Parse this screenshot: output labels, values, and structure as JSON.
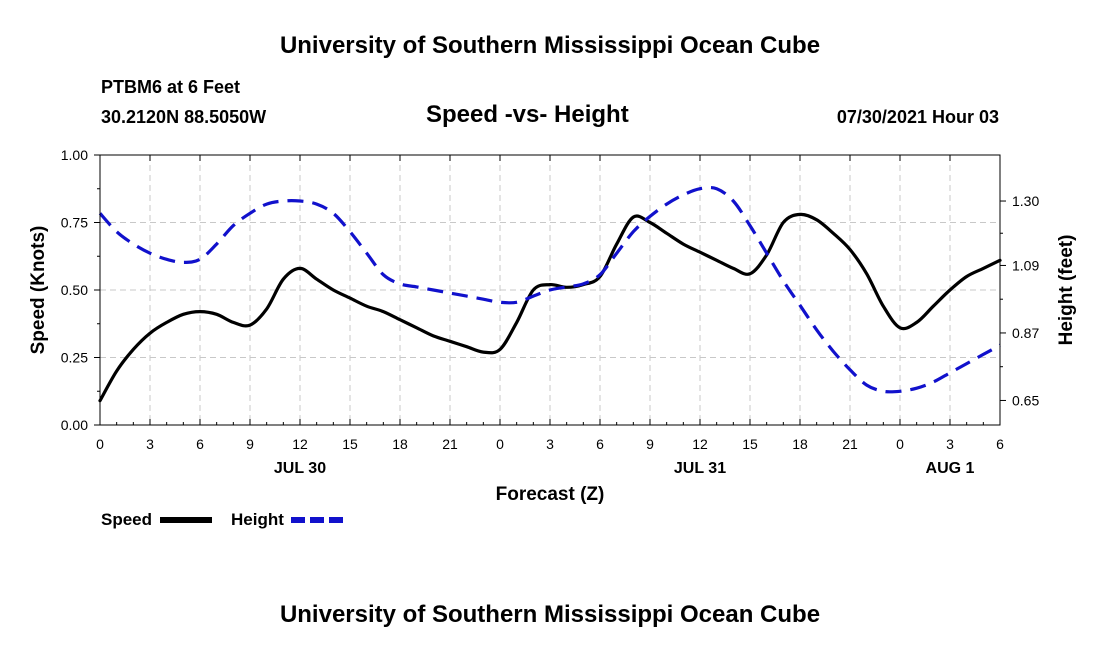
{
  "page": {
    "top_title": "University of Southern Mississippi Ocean Cube",
    "bottom_title": "University of Southern Mississippi Ocean Cube",
    "station": "PTBM6 at 6 Feet",
    "coords": "30.2120N  88.5050W",
    "timestamp": "07/30/2021 Hour 03"
  },
  "chart_data": {
    "type": "line",
    "title": "Speed -vs- Height",
    "xlabel": "Forecast (Z)",
    "ylabel": "Speed (Knots)",
    "y2label": "Height (feet)",
    "grid": true,
    "legend_position": "bottom-left",
    "x_unit": "hours since 2021-07-30 00Z",
    "xlim": [
      0,
      54
    ],
    "ylim": [
      0,
      1
    ],
    "y2lim": [
      0.57,
      1.45
    ],
    "x_ticks": [
      0,
      3,
      6,
      9,
      12,
      15,
      18,
      21,
      24,
      27,
      30,
      33,
      36,
      39,
      42,
      45,
      48,
      51,
      54
    ],
    "x_tick_labels": [
      "0",
      "3",
      "6",
      "9",
      "12",
      "15",
      "18",
      "21",
      "0",
      "3",
      "6",
      "9",
      "12",
      "15",
      "18",
      "21",
      "0",
      "3",
      "6"
    ],
    "date_labels": [
      {
        "x": 12,
        "label": "JUL 30"
      },
      {
        "x": 36,
        "label": "JUL 31"
      },
      {
        "x": 51,
        "label": "AUG 1"
      }
    ],
    "y_ticks": [
      0,
      0.25,
      0.5,
      0.75,
      1.0
    ],
    "y_tick_labels": [
      "0.00",
      "0.25",
      "0.50",
      "0.75",
      "1.00"
    ],
    "y2_ticks": [
      0.65,
      0.87,
      1.09,
      1.3
    ],
    "y2_tick_labels": [
      "0.65",
      "0.87",
      "1.09",
      "1.30"
    ],
    "series": [
      {
        "name": "Speed",
        "axis": "left",
        "color": "#000000",
        "dash": "solid",
        "x": [
          0,
          1,
          2,
          3,
          4,
          5,
          6,
          7,
          8,
          9,
          10,
          11,
          12,
          13,
          14,
          15,
          16,
          17,
          18,
          19,
          20,
          21,
          22,
          23,
          24,
          25,
          26,
          27,
          28,
          29,
          30,
          31,
          32,
          33,
          34,
          35,
          36,
          37,
          38,
          39,
          40,
          41,
          42,
          43,
          44,
          45,
          46,
          47,
          48,
          49,
          50,
          51,
          52,
          53,
          54
        ],
        "values": [
          0.09,
          0.2,
          0.28,
          0.34,
          0.38,
          0.41,
          0.42,
          0.41,
          0.38,
          0.37,
          0.43,
          0.54,
          0.58,
          0.54,
          0.5,
          0.47,
          0.44,
          0.42,
          0.39,
          0.36,
          0.33,
          0.31,
          0.29,
          0.27,
          0.28,
          0.38,
          0.5,
          0.52,
          0.51,
          0.52,
          0.55,
          0.67,
          0.77,
          0.75,
          0.71,
          0.67,
          0.64,
          0.61,
          0.58,
          0.56,
          0.63,
          0.75,
          0.78,
          0.76,
          0.71,
          0.65,
          0.56,
          0.44,
          0.36,
          0.38,
          0.44,
          0.5,
          0.55,
          0.58,
          0.61
        ]
      },
      {
        "name": "Height",
        "axis": "right",
        "color": "#1111cc",
        "dash": "dashed",
        "x": [
          0,
          1,
          2,
          3,
          4,
          5,
          6,
          7,
          8,
          9,
          10,
          11,
          12,
          13,
          14,
          15,
          16,
          17,
          18,
          19,
          20,
          21,
          22,
          23,
          24,
          25,
          26,
          27,
          28,
          29,
          30,
          31,
          32,
          33,
          34,
          35,
          36,
          37,
          38,
          39,
          40,
          41,
          42,
          43,
          44,
          45,
          46,
          47,
          48,
          49,
          50,
          51,
          52,
          53,
          54
        ],
        "values": [
          1.26,
          1.2,
          1.16,
          1.13,
          1.11,
          1.1,
          1.11,
          1.16,
          1.22,
          1.26,
          1.29,
          1.3,
          1.3,
          1.29,
          1.26,
          1.2,
          1.13,
          1.06,
          1.03,
          1.02,
          1.01,
          1.0,
          0.99,
          0.98,
          0.97,
          0.97,
          0.99,
          1.01,
          1.02,
          1.03,
          1.06,
          1.13,
          1.2,
          1.25,
          1.29,
          1.32,
          1.34,
          1.34,
          1.3,
          1.22,
          1.13,
          1.04,
          0.96,
          0.88,
          0.81,
          0.75,
          0.7,
          0.68,
          0.68,
          0.69,
          0.71,
          0.74,
          0.77,
          0.8,
          0.83
        ]
      }
    ]
  }
}
